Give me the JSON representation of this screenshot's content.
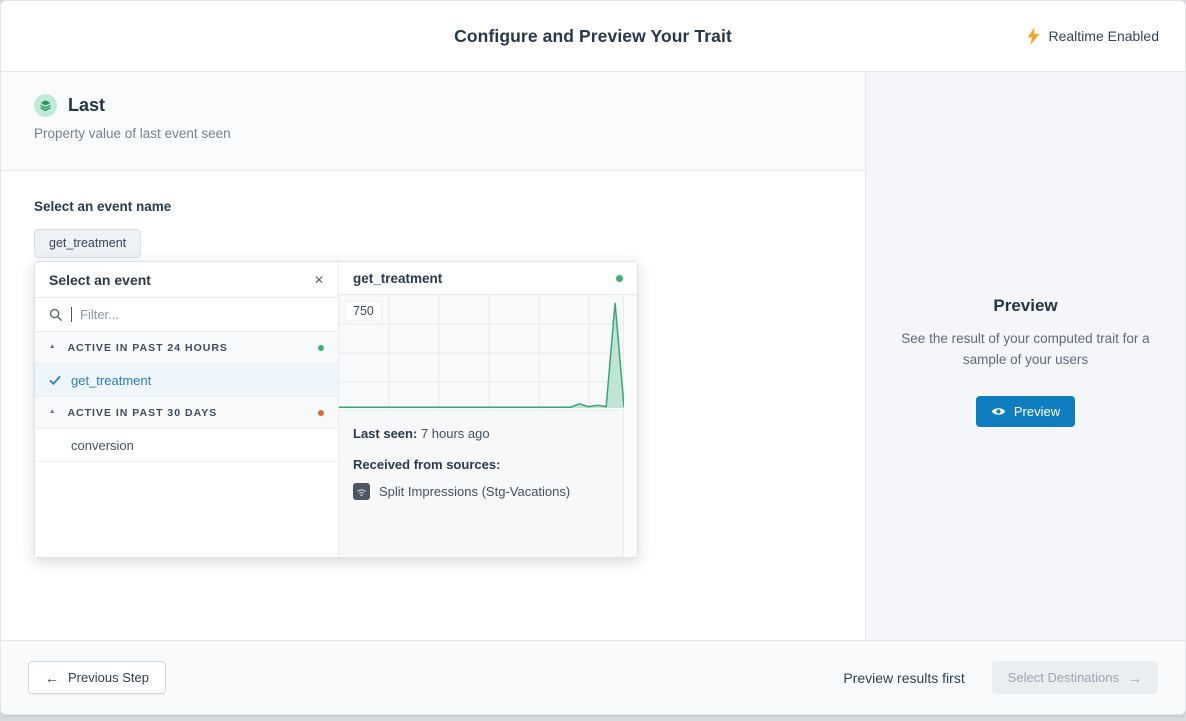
{
  "header": {
    "title": "Configure and Preview Your Trait",
    "realtime_label": "Realtime Enabled"
  },
  "trait": {
    "name": "Last",
    "description": "Property value of last event seen"
  },
  "event_select": {
    "label": "Select an event name",
    "selected_chip": "get_treatment",
    "popover": {
      "title": "Select an event",
      "filter_placeholder": "Filter...",
      "groups": [
        {
          "label": "ACTIVE IN PAST 24 HOURS",
          "dot_color": "#3cb273",
          "items": [
            {
              "name": "get_treatment",
              "selected": true
            }
          ]
        },
        {
          "label": "ACTIVE IN PAST 30 DAYS",
          "dot_color": "#e0693a",
          "items": [
            {
              "name": "conversion",
              "selected": false
            }
          ]
        }
      ]
    },
    "detail": {
      "event_name": "get_treatment",
      "status_dot_color": "#3cb273",
      "last_seen_label": "Last seen:",
      "last_seen_value": "7 hours ago",
      "sources_label": "Received from sources:",
      "sources": [
        "Split Impressions (Stg-Vacations)"
      ]
    }
  },
  "chart_data": {
    "type": "area",
    "title": "get_treatment event volume sparkline",
    "xlabel": "",
    "ylabel": "",
    "y_tick_labels": [
      "750"
    ],
    "ylim": [
      0,
      750
    ],
    "grid": true,
    "legend": false,
    "line_color": "#36a873",
    "fill_color": "rgba(84,186,142,0.33)",
    "values": [
      5,
      6,
      5,
      6,
      5,
      6,
      5,
      6,
      5,
      6,
      5,
      6,
      5,
      6,
      5,
      6,
      5,
      6,
      5,
      6,
      5,
      6,
      5,
      6,
      5,
      6,
      6,
      30,
      9,
      20,
      10,
      750,
      8
    ]
  },
  "sidebar": {
    "title": "Preview",
    "description": "See the result of your computed trait for a sample of your users",
    "button_label": "Preview"
  },
  "footer": {
    "previous_label": "Previous Step",
    "hint": "Preview results first",
    "next_label": "Select Destinations"
  },
  "colors": {
    "accent_blue": "#0f7dbf",
    "active_green": "#3cb273",
    "warn_orange": "#e0693a",
    "bolt_yellow": "#f6a82d"
  },
  "icons": {
    "close_glyph": "✕",
    "caret_up_glyph": "▲",
    "arrow_left_glyph": "←",
    "arrow_right_glyph": "→"
  }
}
